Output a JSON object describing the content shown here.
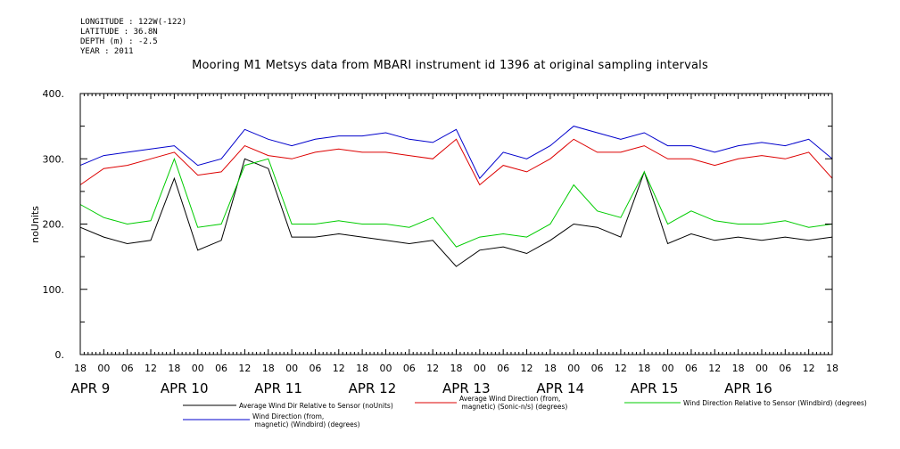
{
  "meta": {
    "longitude": "LONGITUDE : 122W(-122)",
    "latitude": "LATITUDE : 36.8N",
    "depth": "DEPTH (m) : -2.5",
    "year": "YEAR : 2011"
  },
  "chart_data": {
    "type": "line",
    "title": "Mooring M1 Metsys data from MBARI instrument id 1396 at original sampling intervals",
    "ylabel": "noUnits",
    "xlabel": "",
    "ylim": [
      0,
      400
    ],
    "y_ticks": [
      "0.",
      "100.",
      "200.",
      "300.",
      "400."
    ],
    "y_tick_values": [
      0,
      100,
      200,
      300,
      400
    ],
    "x_range_hours": [
      -6,
      186
    ],
    "x_tick_labels": [
      "18",
      "00",
      "06",
      "12",
      "18",
      "00",
      "06",
      "12",
      "18",
      "00",
      "06",
      "12",
      "18",
      "00",
      "06",
      "12",
      "18",
      "00",
      "06",
      "12",
      "18",
      "00",
      "06",
      "12",
      "18",
      "00",
      "06",
      "12",
      "18",
      "00",
      "06",
      "12",
      "18"
    ],
    "day_labels": [
      "APR  9",
      "APR 10",
      "APR 11",
      "APR 12",
      "APR 13",
      "APR 14",
      "APR 15",
      "APR 16"
    ],
    "grid": false,
    "legend_placement": "bottom",
    "series": [
      {
        "name": "Average Wind Dir Relative to Sensor (noUnits)",
        "color": "#000000",
        "x": [
          -6,
          0,
          6,
          12,
          18,
          24,
          30,
          36,
          42,
          48,
          54,
          60,
          66,
          72,
          78,
          84,
          90,
          96,
          102,
          108,
          114,
          120,
          126,
          132,
          138,
          144,
          150,
          156,
          162,
          168,
          174,
          180,
          186
        ],
        "values": [
          195,
          180,
          170,
          175,
          270,
          160,
          175,
          300,
          285,
          180,
          180,
          185,
          180,
          175,
          170,
          175,
          135,
          160,
          165,
          155,
          175,
          200,
          195,
          180,
          280,
          170,
          185,
          175,
          180,
          175,
          180,
          175,
          180
        ]
      },
      {
        "name": "Average Wind Direction (from, magnetic) (Sonic-n/s) (degrees)",
        "color": "#dd0000",
        "x": [
          -6,
          0,
          6,
          12,
          18,
          24,
          30,
          36,
          42,
          48,
          54,
          60,
          66,
          72,
          78,
          84,
          90,
          96,
          102,
          108,
          114,
          120,
          126,
          132,
          138,
          144,
          150,
          156,
          162,
          168,
          174,
          180,
          186
        ],
        "values": [
          260,
          285,
          290,
          300,
          310,
          275,
          280,
          320,
          305,
          300,
          310,
          315,
          310,
          310,
          305,
          300,
          330,
          260,
          290,
          280,
          300,
          330,
          310,
          310,
          320,
          300,
          300,
          290,
          300,
          305,
          300,
          310,
          270
        ]
      },
      {
        "name": "Wind Direction Relative to Sensor (Windbird) (degrees)",
        "color": "#00cc00",
        "x": [
          -6,
          0,
          6,
          12,
          18,
          24,
          30,
          36,
          42,
          48,
          54,
          60,
          66,
          72,
          78,
          84,
          90,
          96,
          102,
          108,
          114,
          120,
          126,
          132,
          138,
          144,
          150,
          156,
          162,
          168,
          174,
          180,
          186
        ],
        "values": [
          230,
          210,
          200,
          205,
          300,
          195,
          200,
          290,
          300,
          200,
          200,
          205,
          200,
          200,
          195,
          210,
          165,
          180,
          185,
          180,
          200,
          260,
          220,
          210,
          280,
          200,
          220,
          205,
          200,
          200,
          205,
          195,
          200
        ]
      },
      {
        "name": "Wind Direction (from, magnetic) (Windbird) (degrees)",
        "color": "#0000cc",
        "x": [
          -6,
          0,
          6,
          12,
          18,
          24,
          30,
          36,
          42,
          48,
          54,
          60,
          66,
          72,
          78,
          84,
          90,
          96,
          102,
          108,
          114,
          120,
          126,
          132,
          138,
          144,
          150,
          156,
          162,
          168,
          174,
          180,
          186
        ],
        "values": [
          290,
          305,
          310,
          315,
          320,
          290,
          300,
          345,
          330,
          320,
          330,
          335,
          335,
          340,
          330,
          325,
          345,
          270,
          310,
          300,
          320,
          350,
          340,
          330,
          340,
          320,
          320,
          310,
          320,
          325,
          320,
          330,
          300
        ]
      }
    ]
  }
}
